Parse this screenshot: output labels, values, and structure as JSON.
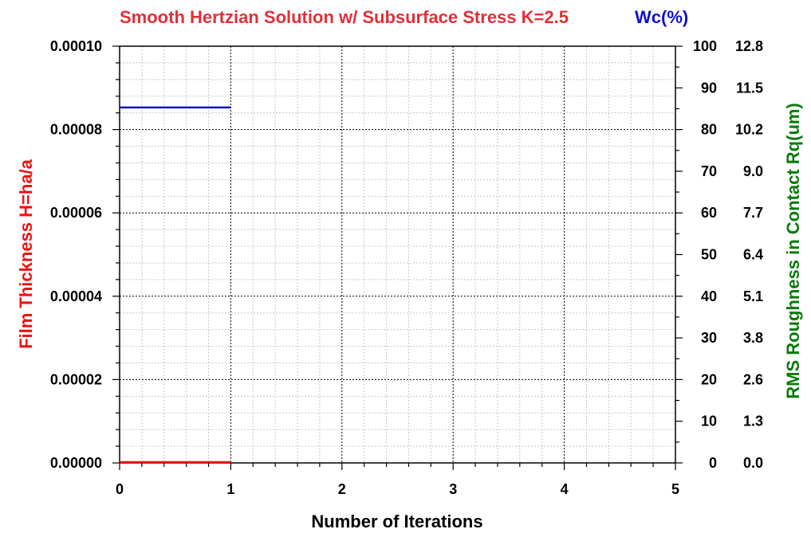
{
  "chart_data": {
    "type": "line",
    "title": "Smooth Hertzian Solution w/ Subsurface Stress K=2.5",
    "title_color": "#e0303a",
    "secondary_title": "Wc(%)",
    "secondary_title_color": "#1010cc",
    "xlabel": "Number of Iterations",
    "xlabel_color": "#000000",
    "ylabel_left": "Film Thickness H=ha/a",
    "ylabel_left_color": "#ee1111",
    "ylabel_right": "RMS Roughness in Contact Rq(um)",
    "ylabel_right_color": "#0a7a0a",
    "xlim": [
      0,
      5
    ],
    "x_ticks": [
      "0",
      "1",
      "2",
      "3",
      "4",
      "5"
    ],
    "ylim_left": [
      0,
      0.0001
    ],
    "y_ticks_left": [
      "0.00000",
      "0.00002",
      "0.00004",
      "0.00006",
      "0.00008",
      "0.00010"
    ],
    "ylim_right_wc": [
      0,
      100
    ],
    "y_ticks_right_wc": [
      "0",
      "10",
      "20",
      "30",
      "40",
      "50",
      "60",
      "70",
      "80",
      "90",
      "100"
    ],
    "ylim_right_rq": [
      0,
      12.8
    ],
    "y_ticks_right_rq": [
      "0.0",
      "1.3",
      "2.6",
      "3.8",
      "5.1",
      "6.4",
      "7.7",
      "9.0",
      "10.2",
      "11.5",
      "12.8"
    ],
    "grid": true,
    "series": [
      {
        "axis": "left",
        "color": "#ee1111",
        "x": [
          0,
          1
        ],
        "y": [
          0,
          0
        ]
      },
      {
        "axis": "right_wc",
        "color": "#1010cc",
        "x": [
          0,
          1
        ],
        "y": [
          85.3,
          85.3
        ]
      }
    ]
  }
}
